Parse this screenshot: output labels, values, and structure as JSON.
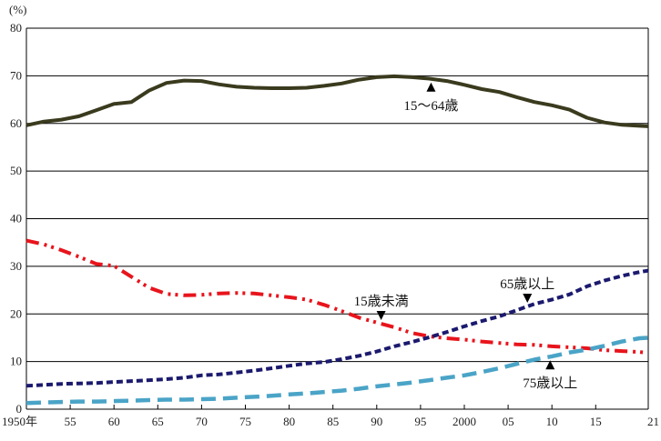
{
  "chart_data": {
    "type": "line",
    "unit_label": "(%)",
    "ylim": [
      0,
      80
    ],
    "y_ticks": [
      0,
      10,
      20,
      30,
      40,
      50,
      60,
      70,
      80
    ],
    "xlim": [
      1950,
      2021
    ],
    "x_ticks": [
      {
        "x": 1950,
        "label": "1950年"
      },
      {
        "x": 1955,
        "label": "55"
      },
      {
        "x": 1960,
        "label": "60"
      },
      {
        "x": 1965,
        "label": "65"
      },
      {
        "x": 1970,
        "label": "70"
      },
      {
        "x": 1975,
        "label": "75"
      },
      {
        "x": 1980,
        "label": "80"
      },
      {
        "x": 1985,
        "label": "85"
      },
      {
        "x": 1990,
        "label": "90"
      },
      {
        "x": 1995,
        "label": "95"
      },
      {
        "x": 2000,
        "label": "2000"
      },
      {
        "x": 2005,
        "label": "05"
      },
      {
        "x": 2010,
        "label": "10"
      },
      {
        "x": 2015,
        "label": "15"
      },
      {
        "x": 2021,
        "label": "21"
      }
    ],
    "grid": "horizontal",
    "series": [
      {
        "name": "15〜64歳",
        "color": "#3a3a1e",
        "style": "solid",
        "x": [
          1950,
          1952,
          1954,
          1956,
          1958,
          1960,
          1962,
          1964,
          1966,
          1968,
          1970,
          1972,
          1974,
          1976,
          1978,
          1980,
          1982,
          1984,
          1986,
          1988,
          1990,
          1992,
          1994,
          1996,
          1998,
          2000,
          2002,
          2004,
          2006,
          2008,
          2010,
          2012,
          2014,
          2016,
          2018,
          2020,
          2021
        ],
        "values": [
          59.6,
          60.4,
          60.8,
          61.5,
          62.8,
          64.1,
          64.5,
          66.9,
          68.5,
          69.0,
          68.9,
          68.2,
          67.7,
          67.5,
          67.4,
          67.4,
          67.5,
          67.9,
          68.4,
          69.2,
          69.7,
          69.9,
          69.7,
          69.4,
          68.9,
          68.1,
          67.2,
          66.6,
          65.5,
          64.5,
          63.8,
          62.9,
          61.2,
          60.2,
          59.7,
          59.5,
          59.4
        ]
      },
      {
        "name": "15歳未満",
        "color": "#e8141c",
        "style": "dash-dot-dot",
        "x": [
          1950,
          1952,
          1954,
          1956,
          1958,
          1960,
          1962,
          1964,
          1966,
          1968,
          1970,
          1972,
          1974,
          1976,
          1978,
          1980,
          1982,
          1984,
          1986,
          1988,
          1990,
          1992,
          1994,
          1996,
          1998,
          2000,
          2002,
          2004,
          2006,
          2008,
          2010,
          2012,
          2014,
          2016,
          2018,
          2020,
          2021
        ],
        "values": [
          35.4,
          34.6,
          33.4,
          32.0,
          30.5,
          30.1,
          27.8,
          25.5,
          24.2,
          23.9,
          24.0,
          24.3,
          24.4,
          24.3,
          23.9,
          23.5,
          23.0,
          21.9,
          20.6,
          19.2,
          18.2,
          17.2,
          16.0,
          15.3,
          14.9,
          14.6,
          14.2,
          13.9,
          13.6,
          13.5,
          13.2,
          13.0,
          12.8,
          12.4,
          12.2,
          12.0,
          11.8
        ]
      },
      {
        "name": "65歳以上",
        "color": "#1b1a6e",
        "style": "dashed",
        "x": [
          1950,
          1952,
          1954,
          1956,
          1958,
          1960,
          1962,
          1964,
          1966,
          1968,
          1970,
          1972,
          1974,
          1976,
          1978,
          1980,
          1982,
          1984,
          1986,
          1988,
          1990,
          1992,
          1994,
          1996,
          1998,
          2000,
          2002,
          2004,
          2006,
          2008,
          2010,
          2012,
          2014,
          2016,
          2018,
          2020,
          2021
        ],
        "values": [
          4.9,
          5.1,
          5.3,
          5.4,
          5.5,
          5.7,
          5.9,
          6.1,
          6.3,
          6.6,
          7.1,
          7.3,
          7.7,
          8.1,
          8.6,
          9.1,
          9.6,
          9.9,
          10.5,
          11.2,
          12.1,
          13.2,
          14.1,
          15.1,
          16.2,
          17.4,
          18.5,
          19.5,
          20.8,
          22.1,
          23.0,
          24.1,
          25.8,
          27.0,
          28.0,
          28.8,
          29.1
        ]
      },
      {
        "name": "75歳以上",
        "color": "#4aa4c7",
        "style": "long-dash",
        "x": [
          1950,
          1952,
          1954,
          1956,
          1958,
          1960,
          1962,
          1964,
          1966,
          1968,
          1970,
          1972,
          1974,
          1976,
          1978,
          1980,
          1982,
          1984,
          1986,
          1988,
          1990,
          1992,
          1994,
          1996,
          1998,
          2000,
          2002,
          2004,
          2006,
          2008,
          2010,
          2012,
          2014,
          2016,
          2018,
          2020,
          2021
        ],
        "values": [
          1.3,
          1.4,
          1.5,
          1.6,
          1.6,
          1.7,
          1.8,
          1.9,
          2.0,
          2.0,
          2.1,
          2.2,
          2.4,
          2.6,
          2.8,
          3.1,
          3.3,
          3.6,
          3.9,
          4.3,
          4.8,
          5.2,
          5.6,
          6.1,
          6.6,
          7.1,
          7.8,
          8.6,
          9.5,
          10.4,
          11.1,
          11.9,
          12.5,
          13.3,
          14.2,
          14.9,
          15.0
        ]
      }
    ],
    "annotations": [
      {
        "text": "15〜64歳",
        "series": "15〜64歳",
        "arrow_x": 1996.2,
        "arrow_dir": "up"
      },
      {
        "text": "15歳未満",
        "series": "15歳未満",
        "arrow_x": 1990.5,
        "arrow_dir": "down"
      },
      {
        "text": "65歳以上",
        "series": "65歳以上",
        "arrow_x": 2007.2,
        "arrow_dir": "down"
      },
      {
        "text": "75歳以上",
        "series": "75歳以上",
        "arrow_x": 2009.8,
        "arrow_dir": "up"
      }
    ]
  }
}
